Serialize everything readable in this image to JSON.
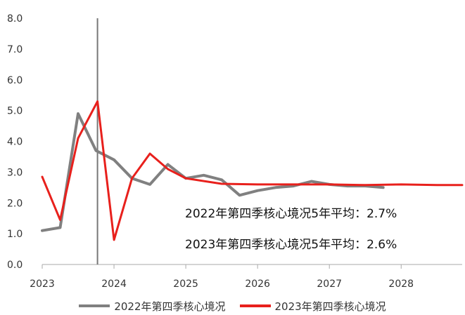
{
  "chart_data": {
    "type": "line",
    "title": "",
    "xlabel": "",
    "ylabel": "",
    "xlim": [
      2023,
      2028.85
    ],
    "ylim": [
      0,
      8
    ],
    "x_ticks": [
      "2023",
      "2024",
      "2025",
      "2026",
      "2027",
      "2028"
    ],
    "y_ticks": [
      "0.0",
      "1.0",
      "2.0",
      "3.0",
      "4.0",
      "5.0",
      "6.0",
      "7.0",
      "8.0"
    ],
    "grid": false,
    "legend_position": "bottom",
    "vertical_marker_x": 2023.77,
    "series": [
      {
        "name": "2022年第四季核心境况",
        "color": "#808080",
        "x": [
          2023.0,
          2023.25,
          2023.5,
          2023.75,
          2024.0,
          2024.25,
          2024.5,
          2024.75,
          2025.0,
          2025.25,
          2025.5,
          2025.75,
          2026.0,
          2026.25,
          2026.5,
          2026.75,
          2027.0,
          2027.25,
          2027.5,
          2027.75
        ],
        "values": [
          1.1,
          1.2,
          4.9,
          3.7,
          3.4,
          2.8,
          2.6,
          3.25,
          2.8,
          2.9,
          2.75,
          2.25,
          2.4,
          2.5,
          2.55,
          2.7,
          2.6,
          2.55,
          2.55,
          2.5
        ]
      },
      {
        "name": "2023年第四季核心境况",
        "color": "#e8201c",
        "x": [
          2023.0,
          2023.25,
          2023.5,
          2023.77,
          2024.0,
          2024.25,
          2024.5,
          2024.75,
          2025.0,
          2025.5,
          2026.0,
          2026.5,
          2027.0,
          2027.5,
          2028.0,
          2028.5,
          2028.85
        ],
        "values": [
          2.85,
          1.45,
          4.1,
          5.3,
          0.8,
          2.8,
          3.6,
          3.1,
          2.8,
          2.62,
          2.6,
          2.6,
          2.6,
          2.58,
          2.6,
          2.58,
          2.58
        ]
      }
    ],
    "annotations": [
      "2022年第四季核心境况5年平均：2.7%",
      "2023年第四季核心境况5年平均：2.6%"
    ]
  }
}
